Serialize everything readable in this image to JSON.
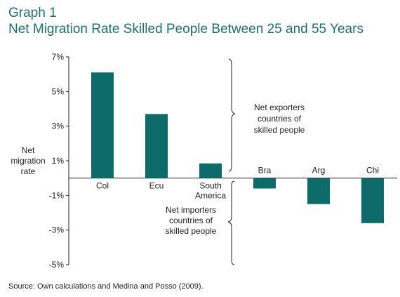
{
  "chart_data": {
    "type": "bar",
    "title": "Graph 1",
    "subtitle": "Net Migration Rate Skilled People Between 25 and 55 Years",
    "ylabel": [
      "Net",
      "migration",
      "rate"
    ],
    "y_ticks": [
      "7%",
      "5%",
      "3%",
      "1%",
      "-1%",
      "-3%",
      "-5%"
    ],
    "ylim": [
      -5,
      7
    ],
    "categories": [
      [
        "Col"
      ],
      [
        "Ecu"
      ],
      [
        "South",
        "America"
      ],
      [
        "Bra"
      ],
      [
        "Arg"
      ],
      [
        "Chi"
      ]
    ],
    "values": [
      6.1,
      3.7,
      0.85,
      -0.6,
      -1.5,
      -2.6
    ],
    "annotations": {
      "exporters": [
        "Net exporters",
        "countries of",
        "skilled people"
      ],
      "importers": [
        "Net importers",
        "countries of",
        "skilled people"
      ]
    },
    "bar_color": "#0d6b6a",
    "grid": false,
    "source": "Source: Own calculations and Medina and Posso (2009)."
  }
}
